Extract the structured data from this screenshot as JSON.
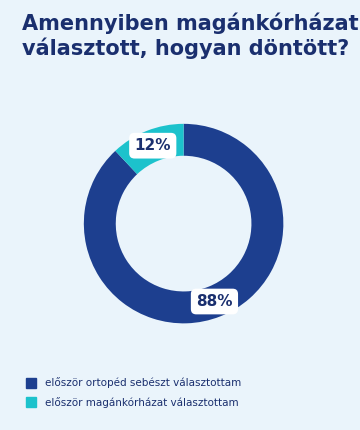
{
  "chart_data": {
    "type": "pie",
    "title": "Amennyiben magánkórházat választott, hogyan döntött?",
    "categories": [
      "először ortopéd sebészt választottam",
      "először magánkórházat választottam"
    ],
    "values": [
      88,
      12
    ],
    "value_labels": [
      "88%",
      "12%"
    ],
    "colors": [
      "#1d3f8f",
      "#1cc2cc"
    ],
    "data_labels": true,
    "legend": "lower left"
  }
}
